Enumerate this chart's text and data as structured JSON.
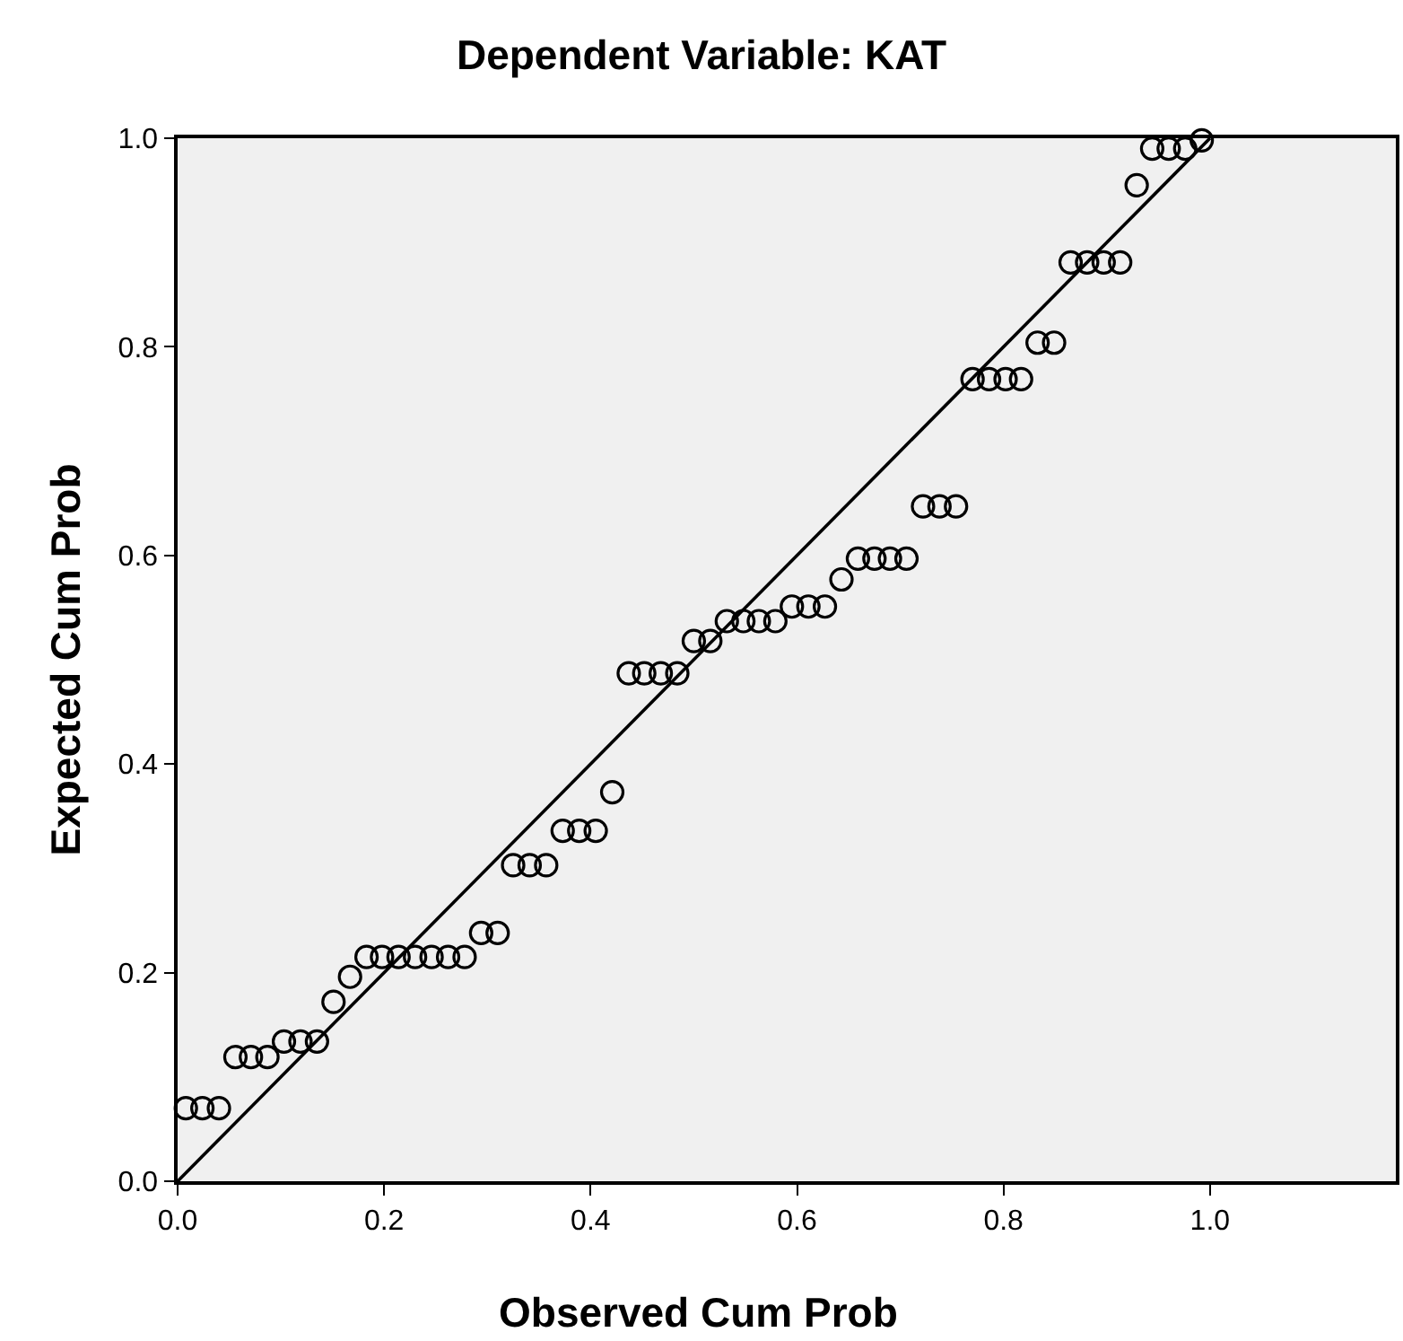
{
  "chart_data": {
    "type": "scatter",
    "title": "Dependent Variable: KAT",
    "xlabel": "Observed Cum Prob",
    "ylabel": "Expected Cum Prob",
    "xlim": [
      0,
      1.18
    ],
    "ylim": [
      0,
      1.0
    ],
    "xticks": [
      {
        "value": 0,
        "label": "0.0"
      },
      {
        "value": 0.2,
        "label": "0.2"
      },
      {
        "value": 0.4,
        "label": "0.4"
      },
      {
        "value": 0.6,
        "label": "0.6"
      },
      {
        "value": 0.8,
        "label": "0.8"
      },
      {
        "value": 1.0,
        "label": "1.0"
      }
    ],
    "yticks": [
      {
        "value": 0,
        "label": "0.0"
      },
      {
        "value": 0.2,
        "label": "0.2"
      },
      {
        "value": 0.4,
        "label": "0.4"
      },
      {
        "value": 0.6,
        "label": "0.6"
      },
      {
        "value": 0.8,
        "label": "0.8"
      },
      {
        "value": 1.0,
        "label": "1.0"
      }
    ],
    "grid": false,
    "marker": "circle",
    "series": [
      {
        "color": "#000000",
        "x": [
          0.008,
          0.024,
          0.04,
          0.056,
          0.071,
          0.087,
          0.103,
          0.119,
          0.135,
          0.151,
          0.167,
          0.183,
          0.198,
          0.214,
          0.23,
          0.246,
          0.262,
          0.278,
          0.294,
          0.31,
          0.325,
          0.341,
          0.357,
          0.373,
          0.389,
          0.405,
          0.421,
          0.437,
          0.452,
          0.468,
          0.484,
          0.5,
          0.516,
          0.532,
          0.548,
          0.563,
          0.579,
          0.595,
          0.611,
          0.627,
          0.643,
          0.659,
          0.675,
          0.69,
          0.706,
          0.722,
          0.738,
          0.754,
          0.77,
          0.786,
          0.802,
          0.817,
          0.833,
          0.849,
          0.865,
          0.881,
          0.897,
          0.913,
          0.929,
          0.944,
          0.96,
          0.976,
          0.992
        ],
        "values": [
          0.07,
          0.07,
          0.07,
          0.119,
          0.119,
          0.119,
          0.134,
          0.134,
          0.134,
          0.172,
          0.196,
          0.215,
          0.215,
          0.215,
          0.215,
          0.215,
          0.215,
          0.215,
          0.238,
          0.238,
          0.303,
          0.303,
          0.303,
          0.336,
          0.336,
          0.336,
          0.373,
          0.487,
          0.487,
          0.487,
          0.487,
          0.518,
          0.518,
          0.537,
          0.537,
          0.537,
          0.537,
          0.551,
          0.551,
          0.551,
          0.577,
          0.597,
          0.597,
          0.597,
          0.597,
          0.647,
          0.647,
          0.647,
          0.769,
          0.769,
          0.769,
          0.769,
          0.804,
          0.804,
          0.881,
          0.881,
          0.881,
          0.881,
          0.955,
          0.99,
          0.99,
          0.99,
          0.998
        ]
      },
      {
        "type": "line",
        "color": "#000000",
        "marker": "none",
        "line_style": "solid",
        "x": [
          0,
          1
        ],
        "values": [
          0,
          1
        ]
      }
    ]
  }
}
